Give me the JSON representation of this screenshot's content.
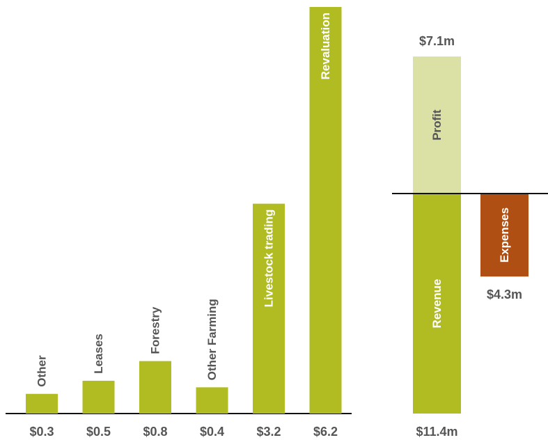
{
  "colors": {
    "bar": "#b0bc22",
    "profit": "#dbe0a4",
    "expenses": "#b04f14",
    "label_dark": "#555555",
    "label_light": "#ffffff",
    "axis": "#111111"
  },
  "chart_data": [
    {
      "type": "bar",
      "categories": [
        "Other",
        "Leases",
        "Forestry",
        "Other Farming",
        "Livestock trading",
        "Revaluation"
      ],
      "values": [
        0.3,
        0.5,
        0.8,
        0.4,
        3.2,
        6.2
      ],
      "value_labels": [
        "$0.3",
        "$0.5",
        "$0.8",
        "$0.4",
        "$3.2",
        "$6.2"
      ],
      "ylim": [
        0,
        6.2
      ],
      "grid": false,
      "label_placement": [
        "above",
        "above",
        "above",
        "above",
        "inside",
        "inside"
      ]
    },
    {
      "type": "bar",
      "categories": [
        "Revenue",
        "Expenses",
        "Profit"
      ],
      "values": [
        11.4,
        4.3,
        7.1
      ],
      "value_labels": [
        "$11.4m",
        "$4.3m",
        "$7.1m"
      ],
      "grid": false
    }
  ]
}
